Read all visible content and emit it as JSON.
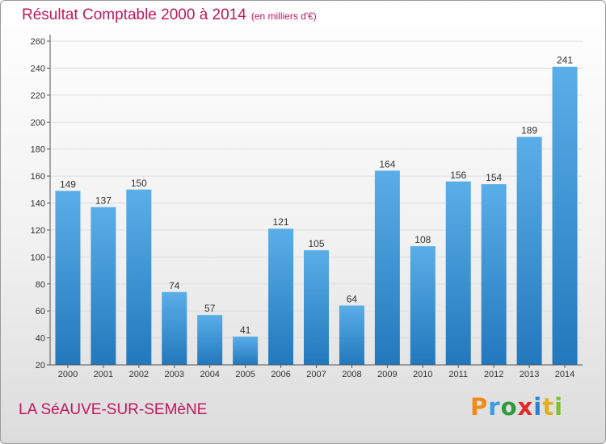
{
  "header": {
    "title": "Résultat Comptable 2000 à 2014",
    "subtitle": "(en milliers d'€)"
  },
  "footer": {
    "location": "LA SéAUVE-SUR-SEMèNE",
    "logo_text": "Proxiti",
    "logo_colors": [
      "#f08a1c",
      "#3a9be0",
      "#2e9a3e",
      "#e02a2a",
      "#2e7fd0",
      "#e0b020",
      "#7cc22e"
    ]
  },
  "colors": {
    "title": "#c0185a",
    "bar_light": "#5aaee8",
    "bar_dark": "#2278bc",
    "axis": "#555555",
    "grid": "#dddddd"
  },
  "chart_data": {
    "type": "bar",
    "title": "Résultat Comptable 2000 à 2014",
    "subtitle": "(en milliers d'€)",
    "categories": [
      "2000",
      "2001",
      "2002",
      "2003",
      "2004",
      "2005",
      "2006",
      "2007",
      "2008",
      "2009",
      "2010",
      "2011",
      "2012",
      "2013",
      "2014"
    ],
    "values": [
      149,
      137,
      150,
      74,
      57,
      41,
      121,
      105,
      64,
      164,
      108,
      156,
      154,
      189,
      241
    ],
    "ylim": [
      20,
      260
    ],
    "yticks": [
      20,
      40,
      60,
      80,
      100,
      120,
      140,
      160,
      180,
      200,
      220,
      240,
      260
    ],
    "grid": true,
    "data_labels": true
  }
}
